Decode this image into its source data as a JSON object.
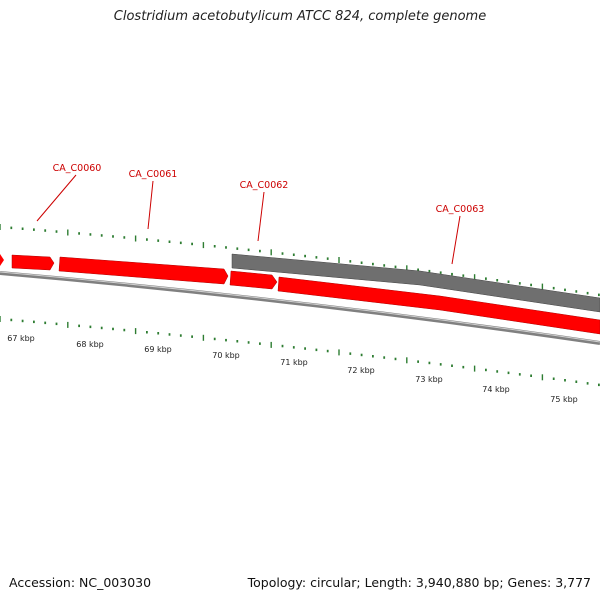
{
  "title": "Clostridium acetobutylicum ATCC 824, complete genome",
  "footer": {
    "accession": "Accession: NC_003030",
    "summary": "Topology: circular; Length: 3,940,880 bp; Genes: 3,777"
  },
  "colors": {
    "gene_forward": "#ff0000",
    "gene_other": "#6f6f6f",
    "backbone": "#808080",
    "tick": "#2e7d32",
    "label": "#cc0000"
  },
  "scale_labels": [
    "67 kbp",
    "68 kbp",
    "69 kbp",
    "70 kbp",
    "71 kbp",
    "72 kbp",
    "73 kbp",
    "74 kbp",
    "75 kbp"
  ],
  "genes": [
    {
      "id": "CA_C0060"
    },
    {
      "id": "CA_C0061"
    },
    {
      "id": "CA_C0062"
    },
    {
      "id": "CA_C0063"
    }
  ]
}
